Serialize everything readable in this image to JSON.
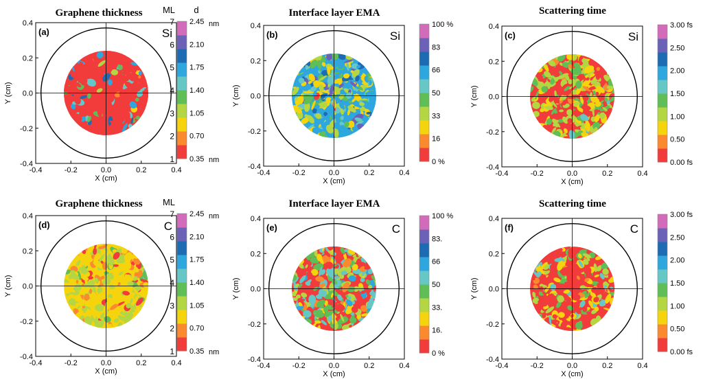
{
  "palette": [
    "#f23c3c",
    "#fb8a2e",
    "#f5d40e",
    "#b3d642",
    "#5fbe55",
    "#66c7c7",
    "#2ea7de",
    "#1d6cb3",
    "#6b62b7",
    "#d26bb9"
  ],
  "chart_data": [
    {
      "type": "heatmap",
      "panel_label": "(a)",
      "substrate": "Si",
      "title": "Graphene thickness",
      "xlabel": "X (cm)",
      "ylabel": "Y (cm)",
      "xlim": [
        -0.4,
        0.4
      ],
      "ylim": [
        -0.4,
        0.4
      ],
      "xticks": [
        "-0.4",
        "-0.2",
        "0.0",
        "0.2",
        "0.4"
      ],
      "yticks": [
        "0.4",
        "0.2",
        "0.0",
        "-0.2",
        "-0.4"
      ],
      "wafer_radius_cm": 0.37,
      "measured_radius_cm": 0.24,
      "grid": true,
      "colorbar": {
        "header_left": "ML",
        "header_right": "d",
        "ml_ticks": [
          "7",
          "6",
          "5",
          "4",
          "3",
          "2",
          "1"
        ],
        "ticks": [
          "2.45",
          "2.10",
          "1.75",
          "1.40",
          "1.05",
          "0.70",
          "0.35"
        ],
        "unit_top": "nm",
        "unit_bottom": "nm",
        "range": [
          0.35,
          2.45
        ],
        "unit": "nm"
      },
      "composition": [
        0.8,
        0.02,
        0.01,
        0.01,
        0.03,
        0.06,
        0.05,
        0.02,
        0,
        0
      ]
    },
    {
      "type": "heatmap",
      "panel_label": "(b)",
      "substrate": "Si",
      "title": "Interface layer EMA",
      "xlabel": "X (cm)",
      "ylabel": "Y (cm)",
      "xlim": [
        -0.4,
        0.4
      ],
      "ylim": [
        -0.4,
        0.4
      ],
      "xticks": [
        "-0.4",
        "-0.2",
        "0.0",
        "0.2",
        "0.4"
      ],
      "yticks": [
        "0.4",
        "0.2",
        "0.0",
        "-0.2",
        "-0.4"
      ],
      "wafer_radius_cm": 0.37,
      "measured_radius_cm": 0.24,
      "grid": true,
      "colorbar": {
        "ticks": [
          "100 %",
          "83",
          "66",
          "50",
          "33",
          "16",
          "0 %"
        ],
        "range": [
          0,
          100
        ],
        "unit": "%"
      },
      "composition": [
        0.01,
        0.02,
        0.2,
        0.16,
        0.1,
        0.14,
        0.22,
        0.07,
        0.08,
        0
      ]
    },
    {
      "type": "heatmap",
      "panel_label": "(c)",
      "substrate": "Si",
      "title": "Scattering time",
      "xlabel": "X (cm)",
      "ylabel": "Y (cm)",
      "xlim": [
        -0.4,
        0.4
      ],
      "ylim": [
        -0.4,
        0.4
      ],
      "xticks": [
        "-0.4",
        "-0.2",
        "0.0",
        "0.2",
        "0.4"
      ],
      "yticks": [
        "0.4",
        "0.2",
        "0.0",
        "-0.2",
        "-0.4"
      ],
      "wafer_radius_cm": 0.37,
      "measured_radius_cm": 0.24,
      "grid": true,
      "colorbar": {
        "ticks": [
          "3.00 fs",
          "2.50",
          "2.00",
          "1.50",
          "1.00",
          "0.50",
          "0.00 fs"
        ],
        "range": [
          0,
          3
        ],
        "unit": "fs"
      },
      "composition": [
        0.28,
        0.03,
        0.2,
        0.27,
        0.2,
        0.02,
        0,
        0,
        0,
        0
      ]
    },
    {
      "type": "heatmap",
      "panel_label": "(d)",
      "substrate": "C",
      "title": "Graphene thickness",
      "xlabel": "X (cm)",
      "ylabel": "Y (cm)",
      "xlim": [
        -0.4,
        0.4
      ],
      "ylim": [
        -0.4,
        0.4
      ],
      "xticks": [
        "-0.4",
        "-0.2",
        "0.0",
        "0.2",
        "0.4"
      ],
      "yticks": [
        "0.4",
        "0.2",
        "0.0",
        "-0.2",
        "-0.4"
      ],
      "wafer_radius_cm": 0.37,
      "measured_radius_cm": 0.24,
      "grid": true,
      "colorbar": {
        "header_left": "ML",
        "header_right": "",
        "ml_ticks": [
          "7",
          "6",
          "5",
          "4",
          "3",
          "2",
          "1"
        ],
        "ticks": [
          "2.45",
          "2.10",
          "1.75",
          "1.40",
          "1.05",
          "0.70",
          "0.35"
        ],
        "unit_top": "nm",
        "unit_bottom": "nm",
        "range": [
          0.35,
          2.45
        ],
        "unit": "nm"
      },
      "composition": [
        0.04,
        0.1,
        0.48,
        0.3,
        0.06,
        0.02,
        0,
        0,
        0,
        0
      ]
    },
    {
      "type": "heatmap",
      "panel_label": "(e)",
      "substrate": "C",
      "title": "Interface layer EMA",
      "xlabel": "X (cm)",
      "ylabel": "Y (cm)",
      "xlim": [
        -0.4,
        0.4
      ],
      "ylim": [
        -0.4,
        0.4
      ],
      "xticks": [
        "-0.4",
        "-0.2",
        "0.0",
        "0.2",
        "0.4"
      ],
      "yticks": [
        "0.4",
        "0.2",
        "0.0",
        "-0.2",
        "-0.4"
      ],
      "wafer_radius_cm": 0.37,
      "measured_radius_cm": 0.24,
      "grid": true,
      "colorbar": {
        "ticks": [
          "100 %",
          "83.",
          "66",
          "50",
          "33.",
          "16.",
          "0 %"
        ],
        "range": [
          0,
          100
        ],
        "unit": "%"
      },
      "composition": [
        0.25,
        0.07,
        0.12,
        0.15,
        0.18,
        0.18,
        0.05,
        0,
        0,
        0
      ]
    },
    {
      "type": "heatmap",
      "panel_label": "(f)",
      "substrate": "C",
      "title": "Scattering time",
      "xlabel": "X (cm)",
      "ylabel": "Y (cm)",
      "xlim": [
        -0.4,
        0.4
      ],
      "ylim": [
        -0.4,
        0.4
      ],
      "xticks": [
        "-0.4",
        "-0.2",
        "0.0",
        "0.2",
        "0.4"
      ],
      "yticks": [
        "0.4",
        "0.2",
        "0.0",
        "-0.2",
        "-0.4"
      ],
      "wafer_radius_cm": 0.37,
      "measured_radius_cm": 0.24,
      "grid": true,
      "colorbar": {
        "ticks": [
          "3.00 fs",
          "2.50",
          "2.00",
          "1.50",
          "1.00",
          "0.50",
          "0.00 fs"
        ],
        "range": [
          0,
          3
        ],
        "unit": "fs"
      },
      "composition": [
        0.55,
        0.04,
        0.16,
        0.12,
        0.08,
        0.05,
        0,
        0,
        0,
        0
      ]
    }
  ]
}
